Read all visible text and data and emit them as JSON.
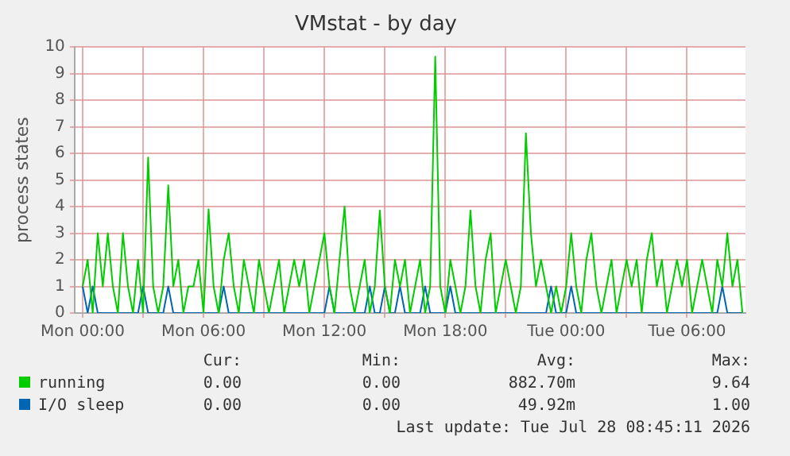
{
  "chart_data": {
    "type": "line",
    "title": "VMstat - by day",
    "ylabel": "process states",
    "x": [
      "2026-07-27T00:00",
      "2026-07-27T00:15",
      "2026-07-27T00:30",
      "2026-07-27T00:45",
      "2026-07-27T01:00",
      "2026-07-27T01:15",
      "2026-07-27T01:30",
      "2026-07-27T01:45",
      "2026-07-27T02:00",
      "2026-07-27T02:15",
      "2026-07-27T02:30",
      "2026-07-27T02:45",
      "2026-07-27T03:00",
      "2026-07-27T03:15",
      "2026-07-27T03:30",
      "2026-07-27T03:45",
      "2026-07-27T04:00",
      "2026-07-27T04:15",
      "2026-07-27T04:30",
      "2026-07-27T04:45",
      "2026-07-27T05:00",
      "2026-07-27T05:15",
      "2026-07-27T05:30",
      "2026-07-27T05:45",
      "2026-07-27T06:00",
      "2026-07-27T06:15",
      "2026-07-27T06:30",
      "2026-07-27T06:45",
      "2026-07-27T07:00",
      "2026-07-27T07:15",
      "2026-07-27T07:30",
      "2026-07-27T07:45",
      "2026-07-27T08:00",
      "2026-07-27T08:15",
      "2026-07-27T08:30",
      "2026-07-27T08:45",
      "2026-07-27T09:00",
      "2026-07-27T09:15",
      "2026-07-27T09:30",
      "2026-07-27T09:45",
      "2026-07-27T10:00",
      "2026-07-27T10:15",
      "2026-07-27T10:30",
      "2026-07-27T10:45",
      "2026-07-27T11:00",
      "2026-07-27T11:15",
      "2026-07-27T11:30",
      "2026-07-27T11:45",
      "2026-07-27T12:00",
      "2026-07-27T12:15",
      "2026-07-27T12:30",
      "2026-07-27T12:45",
      "2026-07-27T13:00",
      "2026-07-27T13:15",
      "2026-07-27T13:30",
      "2026-07-27T13:45",
      "2026-07-27T14:00",
      "2026-07-27T14:15",
      "2026-07-27T14:30",
      "2026-07-27T14:45",
      "2026-07-27T15:00",
      "2026-07-27T15:15",
      "2026-07-27T15:30",
      "2026-07-27T15:45",
      "2026-07-27T16:00",
      "2026-07-27T16:15",
      "2026-07-27T16:30",
      "2026-07-27T16:45",
      "2026-07-27T17:00",
      "2026-07-27T17:15",
      "2026-07-27T17:30",
      "2026-07-27T17:45",
      "2026-07-27T18:00",
      "2026-07-27T18:15",
      "2026-07-27T18:30",
      "2026-07-27T18:45",
      "2026-07-27T19:00",
      "2026-07-27T19:15",
      "2026-07-27T19:30",
      "2026-07-27T19:45",
      "2026-07-27T20:00",
      "2026-07-27T20:15",
      "2026-07-27T20:30",
      "2026-07-27T20:45",
      "2026-07-27T21:00",
      "2026-07-27T21:15",
      "2026-07-27T21:30",
      "2026-07-27T21:45",
      "2026-07-27T22:00",
      "2026-07-27T22:15",
      "2026-07-27T22:30",
      "2026-07-27T22:45",
      "2026-07-27T23:00",
      "2026-07-27T23:15",
      "2026-07-27T23:30",
      "2026-07-27T23:45",
      "2026-07-28T00:00",
      "2026-07-28T00:15",
      "2026-07-28T00:30",
      "2026-07-28T00:45",
      "2026-07-28T01:00",
      "2026-07-28T01:15",
      "2026-07-28T01:30",
      "2026-07-28T01:45",
      "2026-07-28T02:00",
      "2026-07-28T02:15",
      "2026-07-28T02:30",
      "2026-07-28T02:45",
      "2026-07-28T03:00",
      "2026-07-28T03:15",
      "2026-07-28T03:30",
      "2026-07-28T03:45",
      "2026-07-28T04:00",
      "2026-07-28T04:15",
      "2026-07-28T04:30",
      "2026-07-28T04:45",
      "2026-07-28T05:00",
      "2026-07-28T05:15",
      "2026-07-28T05:30",
      "2026-07-28T05:45",
      "2026-07-28T06:00",
      "2026-07-28T06:15",
      "2026-07-28T06:30",
      "2026-07-28T06:45",
      "2026-07-28T07:00",
      "2026-07-28T07:15",
      "2026-07-28T07:30",
      "2026-07-28T07:45",
      "2026-07-28T08:00",
      "2026-07-28T08:15",
      "2026-07-28T08:30",
      "2026-07-28T08:45"
    ],
    "series": [
      {
        "name": "running",
        "color": "#00cc00",
        "values": [
          1,
          2,
          0,
          3,
          1,
          3,
          1,
          0,
          3,
          1,
          0,
          2,
          0,
          5.85,
          1,
          0,
          1,
          4.8,
          1,
          2,
          0,
          1,
          1,
          2,
          0,
          3.9,
          1,
          0,
          2,
          3,
          1,
          0,
          2,
          1,
          0,
          2,
          1,
          0,
          1,
          2,
          0,
          1,
          2,
          1,
          2,
          0,
          1,
          2,
          3,
          1,
          0,
          2,
          4,
          1,
          0,
          1,
          2,
          0,
          1,
          3.85,
          1,
          0,
          2,
          1,
          2,
          0,
          1,
          2,
          0,
          1,
          9.64,
          1,
          0,
          2,
          1,
          0,
          1,
          3.85,
          1,
          0,
          2,
          3,
          0,
          1,
          2,
          1,
          0,
          1,
          6.76,
          3,
          1,
          2,
          1,
          0,
          1,
          0,
          1,
          3,
          1,
          0,
          2,
          3,
          1,
          0,
          1,
          2,
          0,
          1,
          2,
          1,
          2,
          0,
          2,
          3,
          1,
          2,
          0,
          1,
          2,
          1,
          2,
          0,
          1,
          2,
          1,
          0,
          2,
          1,
          3,
          1,
          2,
          0
        ]
      },
      {
        "name": "I/O sleep",
        "color": "#0066b3",
        "values": [
          1,
          0,
          1,
          0,
          0,
          0,
          0,
          0,
          0,
          0,
          0,
          0,
          1,
          0,
          0,
          0,
          0,
          1,
          0,
          0,
          0,
          0,
          0,
          0,
          0,
          0,
          0,
          0,
          1,
          0,
          0,
          0,
          0,
          0,
          0,
          0,
          0,
          0,
          0,
          0,
          0,
          0,
          0,
          0,
          0,
          0,
          0,
          0,
          0,
          1,
          0,
          0,
          0,
          0,
          0,
          0,
          0,
          1,
          0,
          0,
          1,
          0,
          0,
          1,
          0,
          0,
          0,
          0,
          1,
          0,
          0,
          0,
          0,
          1,
          0,
          0,
          0,
          0,
          0,
          0,
          0,
          0,
          0,
          0,
          0,
          0,
          0,
          0,
          0,
          0,
          0,
          0,
          0,
          1,
          0,
          0,
          0,
          1,
          0,
          0,
          0,
          0,
          0,
          0,
          0,
          0,
          0,
          0,
          0,
          0,
          0,
          0,
          0,
          0,
          0,
          0,
          0,
          0,
          0,
          0,
          0,
          0,
          0,
          0,
          0,
          0,
          0,
          1,
          0,
          0,
          0,
          0
        ]
      }
    ],
    "xlim": [
      "2026-07-26T23:36",
      "2026-07-28T08:54"
    ],
    "xticks": [
      {
        "value": "2026-07-27T00:00",
        "label": "Mon 00:00"
      },
      {
        "value": "2026-07-27T03:00",
        "label": null
      },
      {
        "value": "2026-07-27T06:00",
        "label": "Mon 06:00"
      },
      {
        "value": "2026-07-27T09:00",
        "label": null
      },
      {
        "value": "2026-07-27T12:00",
        "label": "Mon 12:00"
      },
      {
        "value": "2026-07-27T15:00",
        "label": null
      },
      {
        "value": "2026-07-27T18:00",
        "label": "Mon 18:00"
      },
      {
        "value": "2026-07-27T21:00",
        "label": null
      },
      {
        "value": "2026-07-28T00:00",
        "label": "Tue 00:00"
      },
      {
        "value": "2026-07-28T03:00",
        "label": null
      },
      {
        "value": "2026-07-28T06:00",
        "label": "Tue 06:00"
      }
    ],
    "ylim": [
      0,
      10
    ],
    "yticks": [
      0,
      1,
      2,
      3,
      4,
      5,
      6,
      7,
      8,
      9,
      10
    ],
    "grid": true,
    "legend": "bottom",
    "marker": "none",
    "line_style": "solid",
    "annotations": [
      "Cur:",
      "Min:",
      "Avg:",
      "Max:",
      "0.00",
      "0.00",
      "882.70m",
      "9.64",
      "0.00",
      "0.00",
      "49.92m",
      "1.00",
      "Last update: Tue Jul 28 08:45:11 2026"
    ]
  }
}
